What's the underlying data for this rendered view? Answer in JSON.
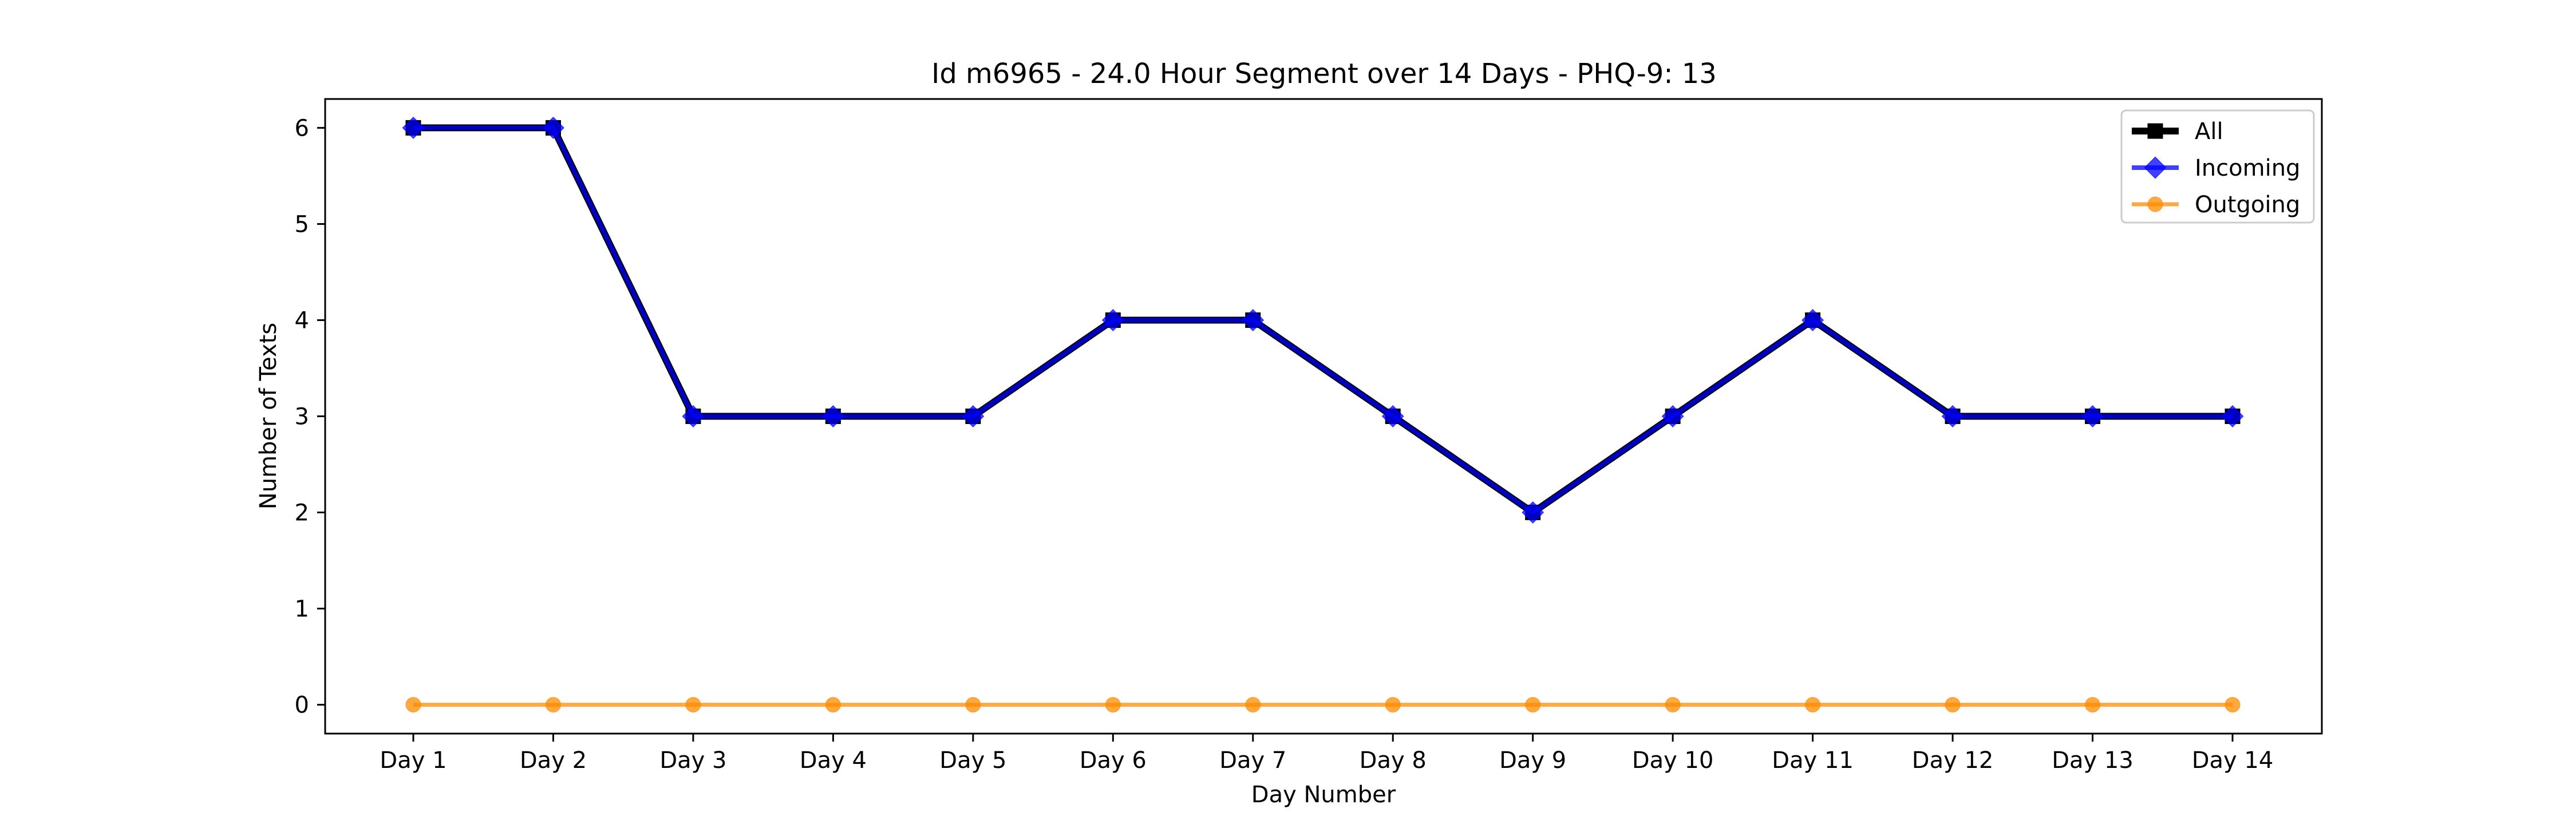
{
  "chart_data": {
    "type": "line",
    "title": "Id m6965 - 24.0 Hour Segment over 14 Days - PHQ-9: 13",
    "xlabel": "Day Number",
    "ylabel": "Number of Texts",
    "categories": [
      "Day 1",
      "Day 2",
      "Day 3",
      "Day 4",
      "Day 5",
      "Day 6",
      "Day 7",
      "Day 8",
      "Day 9",
      "Day 10",
      "Day 11",
      "Day 12",
      "Day 13",
      "Day 14"
    ],
    "ylim": [
      -0.3,
      6.3
    ],
    "yticks": [
      0,
      1,
      2,
      3,
      4,
      5,
      6
    ],
    "grid": false,
    "legend_position": "top-right",
    "series": [
      {
        "name": "All",
        "color": "#000000",
        "marker": "square",
        "values": [
          6,
          6,
          3,
          3,
          3,
          4,
          4,
          3,
          2,
          3,
          4,
          3,
          3,
          3
        ]
      },
      {
        "name": "Incoming",
        "color": "#0000ff",
        "marker": "diamond",
        "values": [
          6,
          6,
          3,
          3,
          3,
          4,
          4,
          3,
          2,
          3,
          4,
          3,
          3,
          3
        ]
      },
      {
        "name": "Outgoing",
        "color": "#ff8c00",
        "marker": "circle",
        "values": [
          0,
          0,
          0,
          0,
          0,
          0,
          0,
          0,
          0,
          0,
          0,
          0,
          0,
          0
        ]
      }
    ]
  }
}
